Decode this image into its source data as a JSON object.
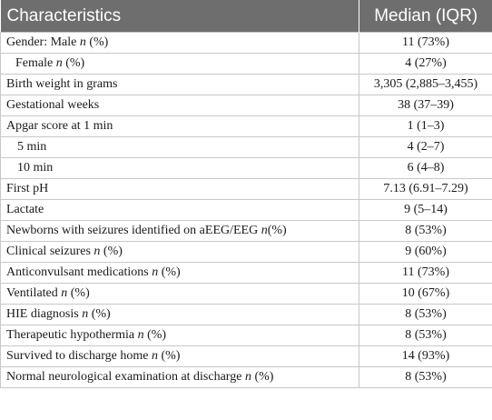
{
  "header": {
    "col1": "Characteristics",
    "col2": "Median (IQR)"
  },
  "rows": [
    {
      "pre": "Gender: Male ",
      "em": "n",
      "post": " (%)",
      "value": "11 (73%)",
      "indent": 0
    },
    {
      "pre": "Female ",
      "em": "n",
      "post": " (%)",
      "value": "4 (27%)",
      "indent": 1
    },
    {
      "pre": "Birth weight in grams",
      "em": "",
      "post": "",
      "value": "3,305 (2,885–3,455)",
      "indent": 0
    },
    {
      "pre": "Gestational weeks",
      "em": "",
      "post": "",
      "value": "38 (37–39)",
      "indent": 0
    },
    {
      "pre": "Apgar score at 1 min",
      "em": "",
      "post": "",
      "value": "1 (1–3)",
      "indent": 0
    },
    {
      "pre": "5 min",
      "em": "",
      "post": "",
      "value": "4 (2–7)",
      "indent": 2
    },
    {
      "pre": "10 min",
      "em": "",
      "post": "",
      "value": "6 (4–8)",
      "indent": 2
    },
    {
      "pre": "First pH",
      "em": "",
      "post": "",
      "value": "7.13 (6.91–7.29)",
      "indent": 0
    },
    {
      "pre": "Lactate",
      "em": "",
      "post": "",
      "value": "9 (5–14)",
      "indent": 0
    },
    {
      "pre": "Newborns with seizures identified on aEEG/EEG ",
      "em": "n",
      "post": "(%)",
      "value": "8 (53%)",
      "indent": 0
    },
    {
      "pre": "Clinical seizures ",
      "em": "n",
      "post": " (%)",
      "value": "9 (60%)",
      "indent": 0
    },
    {
      "pre": "Anticonvulsant medications ",
      "em": "n",
      "post": " (%)",
      "value": "11 (73%)",
      "indent": 0
    },
    {
      "pre": "Ventilated ",
      "em": "n",
      "post": " (%)",
      "value": "10 (67%)",
      "indent": 0
    },
    {
      "pre": "HIE diagnosis ",
      "em": "n",
      "post": " (%)",
      "value": "8 (53%)",
      "indent": 0
    },
    {
      "pre": "Therapeutic hypothermia ",
      "em": "n",
      "post": " (%)",
      "value": "8 (53%)",
      "indent": 0
    },
    {
      "pre": "Survived to discharge home ",
      "em": "n",
      "post": " (%)",
      "value": "14 (93%)",
      "indent": 0
    },
    {
      "pre": "Normal neurological examination at discharge ",
      "em": "n",
      "post": " (%)",
      "value": "8 (53%)",
      "indent": 0
    }
  ]
}
